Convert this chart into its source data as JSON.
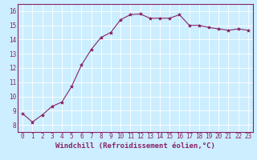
{
  "x": [
    0,
    1,
    2,
    3,
    4,
    5,
    6,
    7,
    8,
    9,
    10,
    11,
    12,
    13,
    14,
    15,
    16,
    17,
    18,
    19,
    20,
    21,
    22,
    23
  ],
  "y": [
    8.8,
    8.2,
    8.7,
    9.3,
    9.6,
    10.7,
    12.2,
    13.3,
    14.15,
    14.5,
    15.4,
    15.75,
    15.8,
    15.5,
    15.5,
    15.5,
    15.75,
    15.0,
    15.0,
    14.85,
    14.75,
    14.65,
    14.75,
    14.65
  ],
  "xlim": [
    -0.5,
    23.5
  ],
  "ylim": [
    7.5,
    16.5
  ],
  "yticks": [
    8,
    9,
    10,
    11,
    12,
    13,
    14,
    15,
    16
  ],
  "xticks": [
    0,
    1,
    2,
    3,
    4,
    5,
    6,
    7,
    8,
    9,
    10,
    11,
    12,
    13,
    14,
    15,
    16,
    17,
    18,
    19,
    20,
    21,
    22,
    23
  ],
  "xlabel": "Windchill (Refroidissement éolien,°C)",
  "line_color": "#882266",
  "marker": "*",
  "marker_size": 3,
  "bg_color": "#cceeff",
  "grid_color": "#ffffff",
  "tick_label_color": "#882266",
  "axis_label_color": "#882266",
  "tick_fontsize": 5.5,
  "xlabel_fontsize": 6.5
}
